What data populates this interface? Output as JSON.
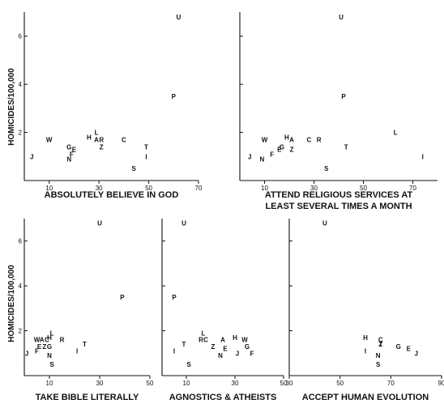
{
  "figure": {
    "ylabel": "HOMICIDES/100,000"
  },
  "chart_data": [
    {
      "type": "scatter",
      "xlabel": [
        "ABSOLUTELY BELIEVE IN GOD"
      ],
      "xlim": [
        0,
        70
      ],
      "ylim": [
        0,
        7
      ],
      "xticks": [
        10,
        30,
        50,
        70
      ],
      "yticks": [
        2,
        4,
        6
      ],
      "ytick_labels": [
        "2",
        "4",
        "6"
      ],
      "points": [
        {
          "label": "U",
          "x": 62,
          "y": 6.8
        },
        {
          "label": "P",
          "x": 60,
          "y": 3.5
        },
        {
          "label": "W",
          "x": 10,
          "y": 1.7
        },
        {
          "label": "H",
          "x": 26,
          "y": 1.8
        },
        {
          "label": "L",
          "x": 29,
          "y": 2.0
        },
        {
          "label": "A",
          "x": 29,
          "y": 1.7
        },
        {
          "label": "R",
          "x": 31,
          "y": 1.7
        },
        {
          "label": "C",
          "x": 40,
          "y": 1.7
        },
        {
          "label": "G",
          "x": 18,
          "y": 1.4
        },
        {
          "label": "E",
          "x": 20,
          "y": 1.3
        },
        {
          "label": "F",
          "x": 19,
          "y": 1.1
        },
        {
          "label": "N",
          "x": 18,
          "y": 0.9
        },
        {
          "label": "Z",
          "x": 31,
          "y": 1.4
        },
        {
          "label": "T",
          "x": 49,
          "y": 1.4
        },
        {
          "label": "I",
          "x": 49,
          "y": 1.0
        },
        {
          "label": "J",
          "x": 3,
          "y": 1.0
        },
        {
          "label": "S",
          "x": 44,
          "y": 0.5
        }
      ]
    },
    {
      "type": "scatter",
      "xlabel": [
        "ATTEND RELIGIOUS SERVICES AT",
        "LEAST SEVERAL TIMES A MONTH"
      ],
      "xlim": [
        0,
        80
      ],
      "ylim": [
        0,
        7
      ],
      "xticks": [
        10,
        30,
        50,
        70
      ],
      "yticks": [
        2,
        4,
        6
      ],
      "ytick_labels": [],
      "points": [
        {
          "label": "U",
          "x": 41,
          "y": 6.8
        },
        {
          "label": "P",
          "x": 42,
          "y": 3.5
        },
        {
          "label": "W",
          "x": 10,
          "y": 1.7
        },
        {
          "label": "H",
          "x": 19,
          "y": 1.8
        },
        {
          "label": "A",
          "x": 21,
          "y": 1.7
        },
        {
          "label": "C",
          "x": 28,
          "y": 1.7
        },
        {
          "label": "R",
          "x": 32,
          "y": 1.7
        },
        {
          "label": "L",
          "x": 63,
          "y": 2.0
        },
        {
          "label": "G",
          "x": 17,
          "y": 1.4
        },
        {
          "label": "Z",
          "x": 21,
          "y": 1.3
        },
        {
          "label": "E",
          "x": 16,
          "y": 1.3
        },
        {
          "label": "F",
          "x": 13,
          "y": 1.1
        },
        {
          "label": "N",
          "x": 9,
          "y": 0.9
        },
        {
          "label": "J",
          "x": 4,
          "y": 1.0
        },
        {
          "label": "T",
          "x": 43,
          "y": 1.4
        },
        {
          "label": "I",
          "x": 74,
          "y": 1.0
        },
        {
          "label": "S",
          "x": 35,
          "y": 0.5
        }
      ]
    },
    {
      "type": "scatter",
      "xlabel": [
        "TAKE BIBLE LITERALLY"
      ],
      "xlim": [
        0,
        50
      ],
      "ylim": [
        0,
        7
      ],
      "xticks": [
        10,
        30,
        50
      ],
      "yticks": [
        2,
        4,
        6
      ],
      "ytick_labels": [
        "2",
        "4",
        "6"
      ],
      "points": [
        {
          "label": "U",
          "x": 30,
          "y": 6.8
        },
        {
          "label": "P",
          "x": 39,
          "y": 3.5
        },
        {
          "label": "L",
          "x": 11,
          "y": 1.9
        },
        {
          "label": "W",
          "x": 5,
          "y": 1.6
        },
        {
          "label": "A",
          "x": 7,
          "y": 1.6
        },
        {
          "label": "H",
          "x": 10,
          "y": 1.7
        },
        {
          "label": "C",
          "x": 9,
          "y": 1.6
        },
        {
          "label": "R",
          "x": 15,
          "y": 1.6
        },
        {
          "label": "E",
          "x": 6,
          "y": 1.3
        },
        {
          "label": "Z",
          "x": 8,
          "y": 1.3
        },
        {
          "label": "G",
          "x": 10,
          "y": 1.3
        },
        {
          "label": "F",
          "x": 5,
          "y": 1.1
        },
        {
          "label": "T",
          "x": 24,
          "y": 1.4
        },
        {
          "label": "I",
          "x": 21,
          "y": 1.1
        },
        {
          "label": "J",
          "x": 1,
          "y": 1.0
        },
        {
          "label": "N",
          "x": 10,
          "y": 0.9
        },
        {
          "label": "S",
          "x": 11,
          "y": 0.5
        }
      ]
    },
    {
      "type": "scatter",
      "xlabel": [
        "AGNOSTICS & ATHEISTS"
      ],
      "xlim": [
        0,
        50
      ],
      "ylim": [
        0,
        7
      ],
      "xticks": [
        10,
        30,
        50
      ],
      "yticks": [
        2,
        4,
        6
      ],
      "ytick_labels": [],
      "points": [
        {
          "label": "U",
          "x": 9,
          "y": 6.8
        },
        {
          "label": "P",
          "x": 5,
          "y": 3.5
        },
        {
          "label": "L",
          "x": 17,
          "y": 1.9
        },
        {
          "label": "R",
          "x": 16,
          "y": 1.6
        },
        {
          "label": "C",
          "x": 18,
          "y": 1.6
        },
        {
          "label": "A",
          "x": 25,
          "y": 1.6
        },
        {
          "label": "H",
          "x": 30,
          "y": 1.7
        },
        {
          "label": "W",
          "x": 34,
          "y": 1.6
        },
        {
          "label": "T",
          "x": 9,
          "y": 1.4
        },
        {
          "label": "Z",
          "x": 21,
          "y": 1.3
        },
        {
          "label": "E",
          "x": 26,
          "y": 1.2
        },
        {
          "label": "G",
          "x": 35,
          "y": 1.3
        },
        {
          "label": "I",
          "x": 5,
          "y": 1.1
        },
        {
          "label": "J",
          "x": 31,
          "y": 1.0
        },
        {
          "label": "F",
          "x": 37,
          "y": 1.0
        },
        {
          "label": "N",
          "x": 24,
          "y": 0.9
        },
        {
          "label": "S",
          "x": 11,
          "y": 0.5
        }
      ]
    },
    {
      "type": "scatter",
      "xlabel": [
        "ACCEPT HUMAN EVOLUTION"
      ],
      "xlim": [
        30,
        90
      ],
      "ylim": [
        0,
        7
      ],
      "xticks": [
        30,
        50,
        70,
        90
      ],
      "yticks": [
        2,
        4,
        6
      ],
      "ytick_labels": [],
      "points": [
        {
          "label": "U",
          "x": 44,
          "y": 6.8
        },
        {
          "label": "H",
          "x": 60,
          "y": 1.7
        },
        {
          "label": "C",
          "x": 66,
          "y": 1.6
        },
        {
          "label": "Z",
          "x": 66,
          "y": 1.4
        },
        {
          "label": "T",
          "x": 66,
          "y": 1.4
        },
        {
          "label": "G",
          "x": 73,
          "y": 1.3
        },
        {
          "label": "E",
          "x": 77,
          "y": 1.2
        },
        {
          "label": "J",
          "x": 80,
          "y": 1.0
        },
        {
          "label": "I",
          "x": 60,
          "y": 1.1
        },
        {
          "label": "N",
          "x": 65,
          "y": 0.9
        },
        {
          "label": "S",
          "x": 65,
          "y": 0.5
        }
      ]
    }
  ]
}
